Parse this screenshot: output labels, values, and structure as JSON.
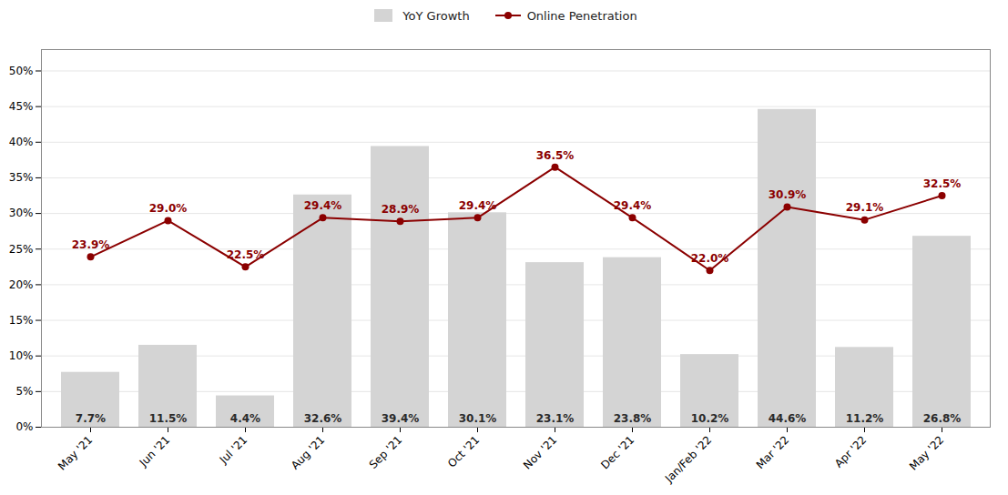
{
  "chart_data": {
    "type": "bar",
    "categories": [
      "May '21",
      "Jun '21",
      "Jul '21",
      "Aug '21",
      "Sep '21",
      "Oct '21",
      "Nov '21",
      "Dec '21",
      "Jan/Feb '22",
      "Mar '22",
      "Apr '22",
      "May '22"
    ],
    "series": [
      {
        "name": "YoY Growth",
        "type": "bar",
        "color": "#d4d4d4",
        "values": [
          7.7,
          11.5,
          4.4,
          32.6,
          39.4,
          30.1,
          23.1,
          23.8,
          10.2,
          44.6,
          11.2,
          26.8
        ],
        "value_labels": [
          "7.7%",
          "11.5%",
          "4.4%",
          "32.6%",
          "39.4%",
          "30.1%",
          "23.1%",
          "23.8%",
          "10.2%",
          "44.6%",
          "11.2%",
          "26.8%"
        ]
      },
      {
        "name": "Online Penetration",
        "type": "line",
        "color": "#8b0000",
        "marker": "circle",
        "values": [
          23.9,
          29.0,
          22.5,
          29.4,
          28.9,
          29.4,
          36.5,
          29.4,
          22.0,
          30.9,
          29.1,
          32.5
        ],
        "value_labels": [
          "23.9%",
          "29.0%",
          "22.5%",
          "29.4%",
          "28.9%",
          "29.4%",
          "36.5%",
          "29.4%",
          "22.0%",
          "30.9%",
          "29.1%",
          "32.5%"
        ]
      }
    ],
    "ylim": [
      0,
      53
    ],
    "yticks": [
      {
        "value": 0,
        "label": "0%"
      },
      {
        "value": 5,
        "label": "5%"
      },
      {
        "value": 10,
        "label": "10%"
      },
      {
        "value": 15,
        "label": "15%"
      },
      {
        "value": 20,
        "label": "20%"
      },
      {
        "value": 25,
        "label": "25%"
      },
      {
        "value": 30,
        "label": "30%"
      },
      {
        "value": 35,
        "label": "35%"
      },
      {
        "value": 40,
        "label": "40%"
      },
      {
        "value": 45,
        "label": "45%"
      },
      {
        "value": 50,
        "label": "50%"
      }
    ],
    "grid": true,
    "legend": "top",
    "data_labels": true
  }
}
